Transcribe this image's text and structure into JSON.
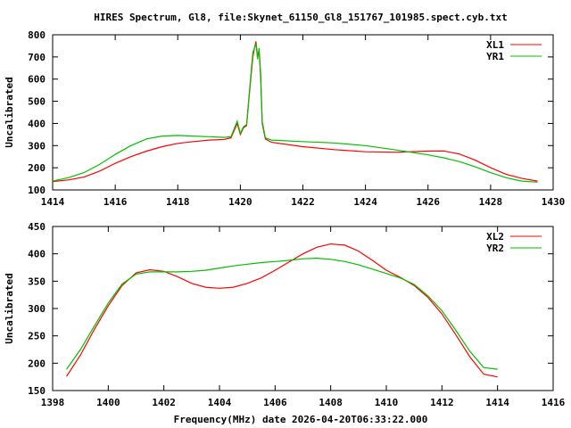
{
  "title": "HIRES Spectrum, Gl8, file:Skynet_61150_Gl8_151767_101985.spect.cyb.txt",
  "colors": {
    "red": "#ff0000",
    "green": "#00c000"
  },
  "chart_data": [
    {
      "type": "line",
      "title": "HIRES Spectrum, Gl8, file:Skynet_61150_Gl8_151767_101985.spect.cyb.txt",
      "xlabel": "",
      "ylabel": "Uncalibrated",
      "xlim": [
        1414,
        1430
      ],
      "ylim": [
        100,
        800
      ],
      "xticks": [
        "1414",
        "1416",
        "1418",
        "1420",
        "1422",
        "1424",
        "1426",
        "1428",
        "1430"
      ],
      "yticks": [
        "100",
        "200",
        "300",
        "400",
        "500",
        "600",
        "700",
        "800"
      ],
      "legend": "top-right",
      "series": [
        {
          "name": "XL1",
          "color": "#ff0000",
          "x": [
            1414,
            1414.5,
            1415,
            1415.5,
            1416,
            1416.5,
            1417,
            1417.5,
            1418,
            1418.5,
            1419,
            1419.5,
            1419.7,
            1419.9,
            1420.0,
            1420.1,
            1420.2,
            1420.3,
            1420.4,
            1420.45,
            1420.5,
            1420.55,
            1420.6,
            1420.65,
            1420.7,
            1420.8,
            1421,
            1422,
            1423,
            1424,
            1425,
            1426,
            1426.5,
            1427,
            1427.5,
            1428,
            1428.5,
            1429,
            1429.5
          ],
          "y": [
            138,
            145,
            158,
            185,
            220,
            250,
            275,
            295,
            310,
            318,
            325,
            328,
            335,
            400,
            350,
            380,
            390,
            550,
            700,
            740,
            770,
            700,
            730,
            600,
            400,
            330,
            315,
            295,
            282,
            272,
            270,
            275,
            276,
            262,
            235,
            200,
            170,
            152,
            140
          ]
        },
        {
          "name": "YR1",
          "color": "#00c000",
          "x": [
            1414,
            1414.5,
            1415,
            1415.5,
            1416,
            1416.5,
            1417,
            1417.5,
            1418,
            1418.5,
            1419,
            1419.5,
            1419.7,
            1419.9,
            1420.0,
            1420.1,
            1420.2,
            1420.3,
            1420.4,
            1420.45,
            1420.5,
            1420.55,
            1420.6,
            1420.65,
            1420.7,
            1420.8,
            1421,
            1422,
            1423,
            1424,
            1425,
            1426,
            1426.5,
            1427,
            1427.5,
            1428,
            1428.5,
            1429,
            1429.5
          ],
          "y": [
            140,
            155,
            178,
            215,
            260,
            300,
            330,
            343,
            346,
            343,
            340,
            337,
            340,
            410,
            355,
            385,
            395,
            560,
            720,
            740,
            760,
            690,
            740,
            620,
            410,
            335,
            325,
            318,
            312,
            300,
            280,
            258,
            245,
            228,
            205,
            178,
            155,
            140,
            135
          ]
        }
      ]
    },
    {
      "type": "line",
      "xlabel": "Frequency(MHz) date 2026-04-20T06:33:22.000",
      "ylabel": "Uncalibrated",
      "xlim": [
        1398,
        1416
      ],
      "ylim": [
        150,
        450
      ],
      "xticks": [
        "1398",
        "1400",
        "1402",
        "1404",
        "1406",
        "1408",
        "1410",
        "1412",
        "1414",
        "1416"
      ],
      "yticks": [
        "150",
        "200",
        "250",
        "300",
        "350",
        "400",
        "450"
      ],
      "legend": "top-right",
      "series": [
        {
          "name": "XL2",
          "color": "#ff0000",
          "x": [
            1398.5,
            1399,
            1399.5,
            1400,
            1400.5,
            1401,
            1401.5,
            1402,
            1402.5,
            1403,
            1403.5,
            1404,
            1404.5,
            1405,
            1405.5,
            1406,
            1406.5,
            1407,
            1407.5,
            1408,
            1408.5,
            1409,
            1409.5,
            1410,
            1410.5,
            1411,
            1411.5,
            1412,
            1412.5,
            1413,
            1413.5,
            1414
          ],
          "y": [
            176,
            215,
            262,
            305,
            342,
            365,
            371,
            368,
            358,
            346,
            339,
            337,
            339,
            346,
            356,
            370,
            385,
            400,
            412,
            418,
            416,
            405,
            388,
            370,
            357,
            342,
            320,
            290,
            252,
            212,
            180,
            175
          ]
        },
        {
          "name": "YR2",
          "color": "#00c000",
          "x": [
            1398.5,
            1399,
            1399.5,
            1400,
            1400.5,
            1401,
            1401.5,
            1402,
            1402.5,
            1403,
            1403.5,
            1404,
            1404.5,
            1405,
            1405.5,
            1406,
            1406.5,
            1407,
            1407.5,
            1408,
            1408.5,
            1409,
            1409.5,
            1410,
            1410.5,
            1411,
            1411.5,
            1412,
            1412.5,
            1413,
            1413.5,
            1414
          ],
          "y": [
            189,
            225,
            268,
            310,
            345,
            363,
            367,
            367,
            367,
            368,
            370,
            374,
            378,
            381,
            384,
            386,
            388,
            391,
            392,
            390,
            386,
            380,
            372,
            364,
            356,
            344,
            323,
            296,
            260,
            222,
            192,
            189
          ]
        }
      ]
    }
  ]
}
